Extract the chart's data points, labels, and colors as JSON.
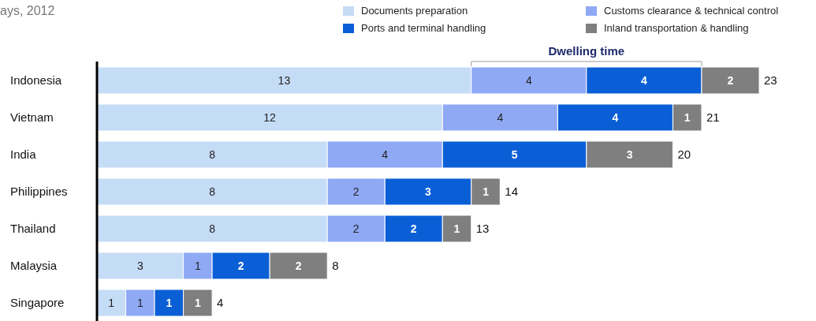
{
  "chart_data": {
    "type": "bar",
    "orientation": "horizontal",
    "stacked": true,
    "title": "ays, 2012",
    "annotations": [
      "Dwelling time"
    ],
    "legend": "top right",
    "data_labels": true,
    "categories": [
      "Indonesia",
      "Vietnam",
      "India",
      "Philippines",
      "Thailand",
      "Malaysia",
      "Singapore"
    ],
    "series": [
      {
        "name": "Documents preparation",
        "color": "#c5dcf7",
        "values": [
          13,
          12,
          8,
          8,
          8,
          3,
          1
        ]
      },
      {
        "name": "Customs clearance & technical control",
        "color": "#8fa9f5",
        "values": [
          4,
          4,
          4,
          2,
          2,
          1,
          1
        ]
      },
      {
        "name": "Ports and terminal handling",
        "color": "#0a5fd6",
        "values": [
          4,
          4,
          5,
          3,
          2,
          2,
          1
        ]
      },
      {
        "name": "Inland transportation & handling",
        "color": "#7f7f7f",
        "values": [
          2,
          1,
          3,
          1,
          1,
          2,
          1
        ]
      }
    ],
    "totals": [
      "23",
      "21",
      "20",
      "14",
      "13",
      "8",
      "4"
    ]
  }
}
